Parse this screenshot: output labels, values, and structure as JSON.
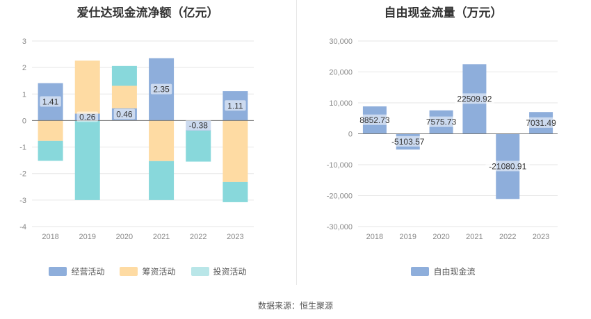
{
  "source_label": "数据来源：恒生聚源",
  "chart_data": [
    {
      "type": "bar",
      "stacked": true,
      "title": "爱仕达现金流净额（亿元）",
      "categories": [
        "2018",
        "2019",
        "2020",
        "2021",
        "2022",
        "2023"
      ],
      "ylim": [
        -4,
        3
      ],
      "yticks": [
        "3",
        "2",
        "1",
        "0",
        "-1",
        "-2",
        "-3",
        "-4"
      ],
      "series": [
        {
          "name": "经营活动",
          "color": "#8eaedb",
          "values": [
            1.41,
            0.26,
            0.46,
            2.35,
            -0.38,
            1.11
          ]
        },
        {
          "name": "筹资活动",
          "color": "#fedba3",
          "values": [
            -0.77,
            2.0,
            0.85,
            -1.53,
            0.0,
            -2.32
          ]
        },
        {
          "name": "投资活动",
          "color": "#88d8db",
          "values": [
            -0.75,
            -3.0,
            0.75,
            -1.47,
            -1.17,
            -0.76
          ]
        }
      ],
      "data_labels": [
        "1.41",
        "0.26",
        "0.46",
        "2.35",
        "-0.38",
        "1.11"
      ]
    },
    {
      "type": "bar",
      "title": "自由现金流量（万元）",
      "categories": [
        "2018",
        "2019",
        "2020",
        "2021",
        "2022",
        "2023"
      ],
      "ylim": [
        -30000,
        30000
      ],
      "yticks": [
        "30,000",
        "20,000",
        "10,000",
        "0",
        "-10,000",
        "-20,000",
        "-30,000"
      ],
      "series": [
        {
          "name": "自由现金流",
          "color": "#8eaedb",
          "values": [
            8852.73,
            -5103.57,
            7575.73,
            22509.92,
            -21080.91,
            7031.49
          ]
        }
      ],
      "data_labels": [
        "8852.73",
        "-5103.57",
        "7575.73",
        "22509.92",
        "-21080.91",
        "7031.49"
      ]
    }
  ]
}
